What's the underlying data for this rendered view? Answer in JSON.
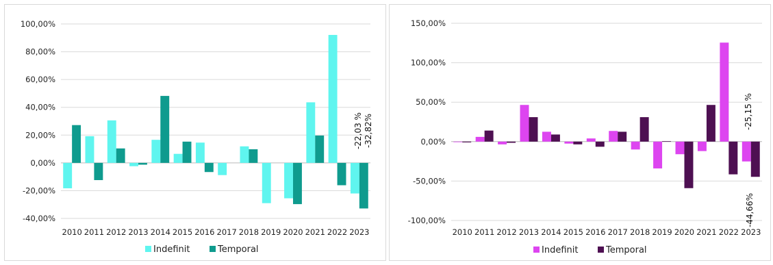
{
  "chart_data": [
    {
      "type": "bar",
      "categories": [
        "2010",
        "2011",
        "2012",
        "2013",
        "2014",
        "2015",
        "2016",
        "2017",
        "2018",
        "2019",
        "2020",
        "2021",
        "2022",
        "2023"
      ],
      "series": [
        {
          "name": "Indefinit",
          "color": "#5ff5ef",
          "values": [
            -18.3,
            19.2,
            30.6,
            -2.4,
            16.6,
            6.5,
            14.6,
            -8.8,
            11.9,
            -29.0,
            -25.5,
            43.6,
            92.1,
            -22.03
          ]
        },
        {
          "name": "Temporal",
          "color": "#0f9b8e",
          "values": [
            27.2,
            -12.4,
            10.4,
            -1.3,
            48.2,
            15.3,
            -6.6,
            0.0,
            9.8,
            0.0,
            -29.7,
            19.7,
            -16.1,
            -32.82
          ]
        }
      ],
      "yticks": [
        "-40,00%",
        "-20,00%",
        "0,00%",
        "20,00%",
        "40,00%",
        "60,00%",
        "80,00%",
        "100,00%"
      ],
      "ylim": [
        -40,
        100
      ],
      "legend_position": "bottom",
      "annotations": [
        "-22,03 %",
        "-32,82%"
      ]
    },
    {
      "type": "bar",
      "categories": [
        "2010",
        "2011",
        "2012",
        "2013",
        "2014",
        "2015",
        "2016",
        "2017",
        "2018",
        "2019",
        "2020",
        "2021",
        "2022",
        "2023"
      ],
      "series": [
        {
          "name": "Indefinit",
          "color": "#dd45f0",
          "values": [
            -0.5,
            6.0,
            -3.5,
            46.5,
            12.5,
            -2.5,
            4.0,
            13.5,
            -10.0,
            -34.0,
            -16.0,
            -12.0,
            125.5,
            -25.15
          ]
        },
        {
          "name": "Temporal",
          "color": "#4e1052",
          "values": [
            -1.0,
            14.0,
            -1.5,
            31.0,
            9.0,
            -3.5,
            -6.5,
            12.5,
            31.0,
            0.5,
            -59.0,
            46.5,
            -41.5,
            -44.66
          ]
        }
      ],
      "yticks": [
        "-100,00%",
        "-50,00%",
        "0,00%",
        "50,00%",
        "100,00%",
        "150,00%"
      ],
      "ylim": [
        -100,
        150
      ],
      "legend_position": "bottom",
      "annotations": [
        "-25,15 %",
        "-44,66%"
      ]
    }
  ]
}
